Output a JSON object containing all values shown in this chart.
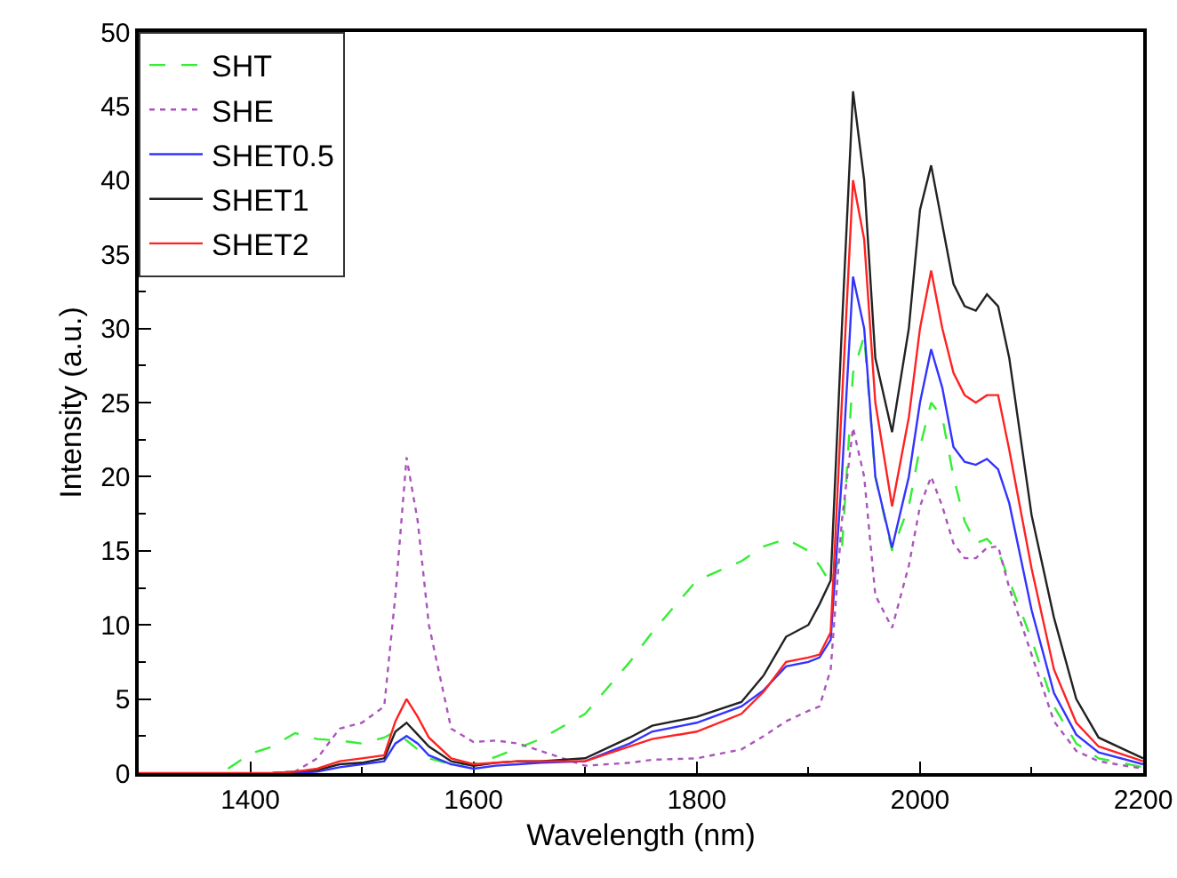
{
  "chart_data": {
    "type": "line",
    "xlabel": "Wavelength (nm)",
    "ylabel": "Intensity (a.u.)",
    "x": [
      1300,
      1360,
      1380,
      1400,
      1420,
      1440,
      1460,
      1480,
      1500,
      1520,
      1530,
      1540,
      1550,
      1560,
      1580,
      1600,
      1620,
      1640,
      1660,
      1700,
      1740,
      1760,
      1800,
      1840,
      1860,
      1880,
      1900,
      1910,
      1920,
      1930,
      1940,
      1950,
      1960,
      1975,
      1990,
      2000,
      2010,
      2020,
      2030,
      2040,
      2050,
      2060,
      2070,
      2080,
      2100,
      2120,
      2140,
      2160,
      2200
    ],
    "series": [
      {
        "name": "SHT",
        "color": "#33ee33",
        "line_style": "dashed",
        "values": [
          null,
          null,
          0.3,
          1.3,
          1.8,
          2.7,
          2.3,
          2.2,
          2.0,
          2.4,
          2.8,
          2.2,
          1.6,
          1.0,
          0.6,
          0.6,
          1.1,
          1.7,
          2.3,
          4.0,
          7.5,
          9.5,
          13.0,
          14.3,
          15.3,
          15.8,
          15.0,
          14.0,
          12.8,
          15.0,
          27.0,
          29.5,
          20.0,
          15.0,
          18.0,
          22.0,
          25.0,
          24.0,
          20.0,
          17.0,
          15.5,
          15.8,
          15.0,
          13.0,
          9.0,
          4.5,
          2.0,
          1.0,
          0.4
        ]
      },
      {
        "name": "SHE",
        "color": "#aa55bb",
        "line_style": "dotted",
        "values": [
          null,
          null,
          null,
          null,
          0,
          0.1,
          1.0,
          3.0,
          3.4,
          4.5,
          12,
          21.3,
          17,
          10,
          3,
          2.1,
          2.2,
          2.0,
          1.5,
          0.5,
          0.7,
          0.9,
          1.0,
          1.6,
          2.5,
          3.5,
          4.2,
          4.5,
          7,
          17,
          23.3,
          20,
          12,
          9.8,
          14,
          18,
          20.0,
          18,
          15.5,
          14.5,
          14.5,
          15.2,
          15.3,
          12.5,
          8,
          3.5,
          1.5,
          0.8,
          0.3
        ]
      },
      {
        "name": "SHET0.5",
        "color": "#3333ff",
        "line_style": "solid",
        "values": [
          null,
          null,
          null,
          null,
          0,
          0,
          0.1,
          0.4,
          0.6,
          0.8,
          2.0,
          2.5,
          2.0,
          1.2,
          0.6,
          0.3,
          0.5,
          0.6,
          0.7,
          0.8,
          2.0,
          2.8,
          3.4,
          4.5,
          5.6,
          7.2,
          7.5,
          7.8,
          9,
          20,
          33.5,
          30,
          20,
          15.2,
          20,
          25,
          28.6,
          26,
          22,
          21,
          20.8,
          21.2,
          20.5,
          18.2,
          11,
          5.4,
          2.6,
          1.4,
          0.6
        ]
      },
      {
        "name": "SHET1",
        "color": "#222222",
        "line_style": "solid",
        "values": [
          null,
          null,
          null,
          null,
          0,
          0.1,
          0.2,
          0.6,
          0.7,
          1.0,
          2.8,
          3.4,
          2.6,
          1.8,
          0.8,
          0.5,
          0.7,
          0.8,
          0.8,
          1.0,
          2.4,
          3.2,
          3.8,
          4.8,
          6.6,
          9.2,
          10,
          11.4,
          13,
          30,
          46,
          40,
          28,
          23,
          30,
          38,
          41,
          37,
          33,
          31.5,
          31.2,
          32.3,
          31.5,
          28,
          17.4,
          10.5,
          5,
          2.4,
          1.0
        ]
      },
      {
        "name": "SHET2",
        "color": "#ff2222",
        "line_style": "solid",
        "values": [
          0,
          0,
          0,
          0,
          0,
          0.1,
          0.3,
          0.8,
          1.0,
          1.2,
          3.5,
          5.0,
          3.8,
          2.4,
          1.0,
          0.6,
          0.7,
          0.8,
          0.8,
          0.8,
          1.8,
          2.3,
          2.8,
          4.0,
          5.5,
          7.5,
          7.8,
          8.0,
          9.5,
          25,
          40,
          36,
          25,
          18,
          24,
          30,
          33.9,
          30,
          27,
          25.5,
          25,
          25.5,
          25.5,
          21.8,
          13.8,
          7,
          3.4,
          1.8,
          0.8
        ]
      }
    ],
    "xlim": [
      1300,
      2200
    ],
    "xticks": [
      1400,
      1600,
      1800,
      2000,
      2200
    ],
    "ylim": [
      0,
      50
    ],
    "yticks": [
      0,
      5,
      10,
      15,
      20,
      25,
      30,
      35,
      40,
      45,
      50
    ],
    "grid": false,
    "legend": "top left",
    "marker": "none"
  }
}
